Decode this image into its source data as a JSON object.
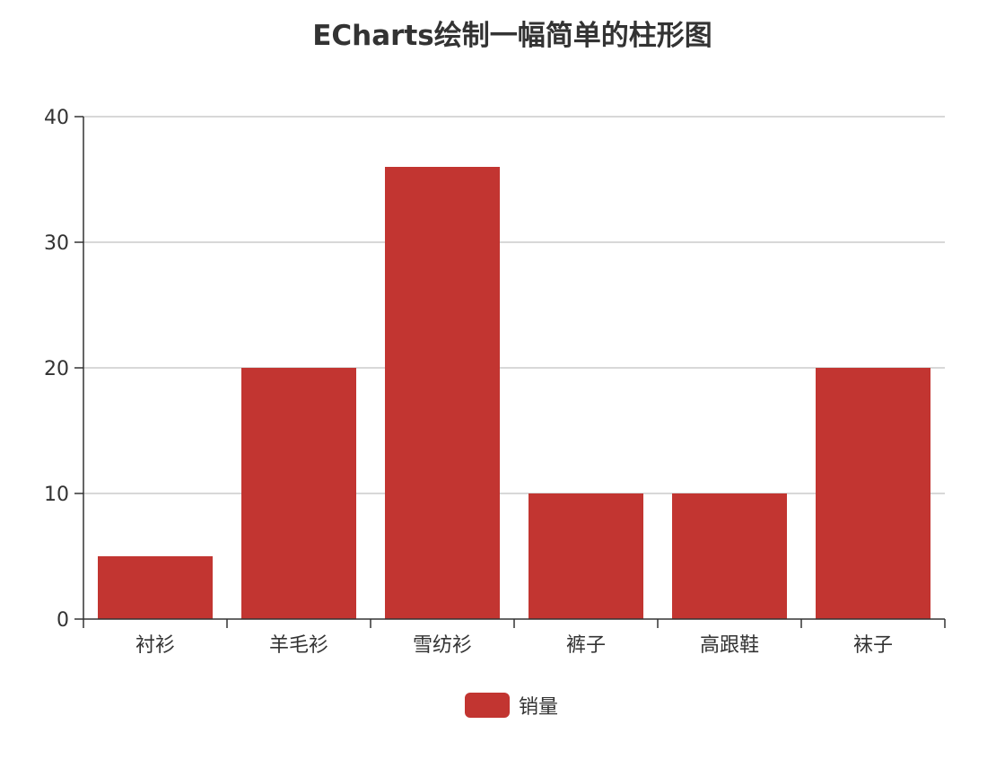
{
  "chart_data": {
    "type": "bar",
    "title": "ECharts绘制一幅简单的柱形图",
    "categories": [
      "衬衫",
      "羊毛衫",
      "雪纺衫",
      "裤子",
      "高跟鞋",
      "袜子"
    ],
    "series": [
      {
        "name": "销量",
        "values": [
          5,
          20,
          36,
          10,
          10,
          20
        ]
      }
    ],
    "ylim": [
      0,
      40
    ],
    "yticks": [
      0,
      10,
      20,
      30,
      40
    ],
    "grid": true,
    "legend_position": "bottom-center"
  },
  "colors": {
    "bar": "#c23531",
    "axis": "#333333",
    "grid": "#cccccc",
    "text": "#333333"
  }
}
